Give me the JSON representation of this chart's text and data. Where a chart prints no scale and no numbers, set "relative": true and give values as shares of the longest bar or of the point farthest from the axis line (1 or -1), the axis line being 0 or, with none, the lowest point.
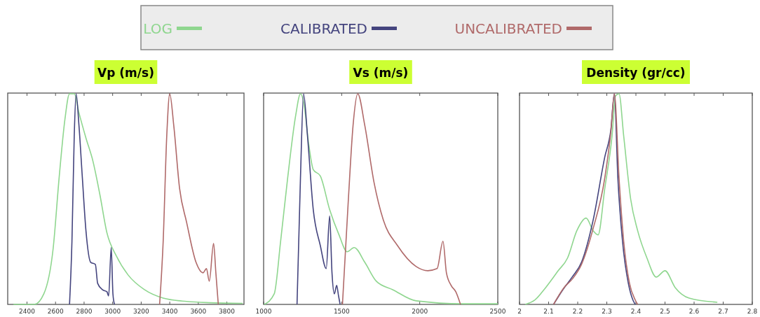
{
  "chart_data": [
    {
      "type": "line",
      "title": "Vp (m/s)",
      "relative": true,
      "legend": "top",
      "xlim": [
        2265,
        3920
      ],
      "xticks": [
        2400,
        2600,
        2800,
        3000,
        3200,
        3400,
        3600,
        3800
      ],
      "series": [
        {
          "name": "LOG",
          "color": "#8fd68f",
          "x": [
            2305,
            2452,
            2518,
            2584,
            2625,
            2666,
            2698,
            2731,
            2764,
            2813,
            2862,
            2911,
            2960,
            3026,
            3108,
            3223,
            3354,
            3518,
            3682,
            3911
          ],
          "values": [
            0,
            0,
            0.05,
            0.27,
            0.6,
            0.88,
            1,
            1,
            0.91,
            0.79,
            0.68,
            0.52,
            0.34,
            0.23,
            0.14,
            0.07,
            0.03,
            0.014,
            0.008,
            0.005
          ]
        },
        {
          "name": "CALIBRATED",
          "color": "#44447e",
          "x": [
            2698,
            2715,
            2731,
            2744,
            2764,
            2788,
            2813,
            2846,
            2879,
            2895,
            2928,
            2960,
            2972,
            2990,
            3002,
            3013
          ],
          "values": [
            0,
            0.3,
            0.8,
            1,
            0.85,
            0.6,
            0.35,
            0.2,
            0.19,
            0.1,
            0.07,
            0.06,
            0.04,
            0.27,
            0.05,
            0
          ]
        },
        {
          "name": "UNCALIBRATED",
          "color": "#b06a6a",
          "x": [
            3329,
            3354,
            3379,
            3400,
            3428,
            3469,
            3518,
            3584,
            3633,
            3657,
            3677,
            3707,
            3723,
            3740
          ],
          "values": [
            0,
            0.3,
            0.8,
            1,
            0.85,
            0.55,
            0.39,
            0.2,
            0.15,
            0.17,
            0.11,
            0.29,
            0.15,
            0
          ]
        }
      ]
    },
    {
      "type": "line",
      "title": "Vs (m/s)",
      "relative": true,
      "xlim": [
        1000,
        2500
      ],
      "xticks": [
        1000,
        1500,
        2000,
        2500
      ],
      "series": [
        {
          "color": "#8fd68f",
          "x": [
            1004,
            1068,
            1109,
            1154,
            1206,
            1236,
            1259,
            1289,
            1318,
            1363,
            1423,
            1483,
            1535,
            1580,
            1648,
            1722,
            1827,
            1977,
            2276,
            2500
          ],
          "values": [
            0,
            0.05,
            0.3,
            0.6,
            0.9,
            1,
            0.95,
            0.76,
            0.64,
            0.61,
            0.45,
            0.33,
            0.25,
            0.27,
            0.2,
            0.11,
            0.07,
            0.017,
            0.003,
            0.003
          ]
        },
        {
          "color": "#44447e",
          "x": [
            1214,
            1236,
            1256,
            1281,
            1318,
            1363,
            1401,
            1423,
            1438,
            1453,
            1468,
            1480,
            1490
          ],
          "values": [
            0,
            0.6,
            1,
            0.8,
            0.45,
            0.28,
            0.17,
            0.42,
            0.15,
            0.05,
            0.09,
            0.04,
            0
          ]
        },
        {
          "color": "#b06a6a",
          "x": [
            1505,
            1543,
            1573,
            1603,
            1648,
            1707,
            1767,
            1857,
            1977,
            2052,
            2111,
            2149,
            2171,
            2201,
            2231,
            2261
          ],
          "values": [
            0,
            0.5,
            0.85,
            1,
            0.85,
            0.58,
            0.4,
            0.28,
            0.18,
            0.16,
            0.17,
            0.3,
            0.15,
            0.09,
            0.06,
            0
          ]
        }
      ]
    },
    {
      "type": "line",
      "title": "Density (gr/cc)",
      "relative": true,
      "xlim": [
        2,
        2.8
      ],
      "xticks": [
        2,
        2.1,
        2.2,
        2.3,
        2.4,
        2.5,
        2.6,
        2.7,
        2.8
      ],
      "series": [
        {
          "color": "#8fd68f",
          "x": [
            2.02,
            2.052,
            2.09,
            2.133,
            2.165,
            2.197,
            2.229,
            2.253,
            2.27,
            2.293,
            2.318,
            2.33,
            2.342,
            2.358,
            2.382,
            2.406,
            2.438,
            2.47,
            2.5,
            2.535,
            2.583,
            2.68
          ],
          "values": [
            0,
            0.02,
            0.08,
            0.16,
            0.22,
            0.35,
            0.41,
            0.35,
            0.33,
            0.55,
            0.8,
            0.99,
            1,
            0.8,
            0.5,
            0.35,
            0.22,
            0.13,
            0.16,
            0.08,
            0.03,
            0.01
          ]
        },
        {
          "color": "#44447e",
          "x": [
            2.117,
            2.149,
            2.181,
            2.213,
            2.253,
            2.293,
            2.314,
            2.326,
            2.338,
            2.354,
            2.374,
            2.39,
            2.398
          ],
          "values": [
            0,
            0.07,
            0.13,
            0.2,
            0.4,
            0.7,
            0.83,
            1,
            0.6,
            0.3,
            0.1,
            0.02,
            0
          ]
        },
        {
          "color": "#b06a6a",
          "x": [
            2.117,
            2.153,
            2.181,
            2.213,
            2.253,
            2.293,
            2.314,
            2.326,
            2.342,
            2.358,
            2.378,
            2.398,
            2.406
          ],
          "values": [
            0,
            0.08,
            0.12,
            0.19,
            0.36,
            0.6,
            0.82,
            1,
            0.6,
            0.3,
            0.1,
            0.02,
            0
          ]
        }
      ]
    }
  ]
}
